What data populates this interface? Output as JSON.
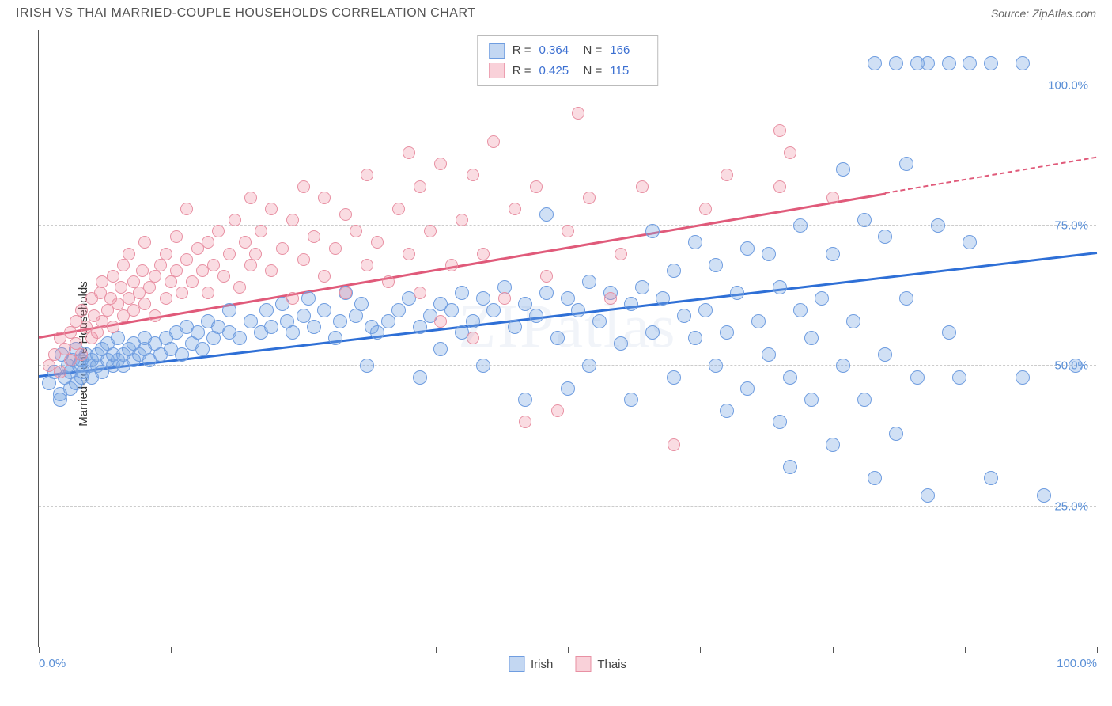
{
  "header": {
    "title": "IRISH VS THAI MARRIED-COUPLE HOUSEHOLDS CORRELATION CHART",
    "source": "Source: ZipAtlas.com"
  },
  "watermark": "ZIPatlas",
  "chart": {
    "type": "scatter",
    "y_axis_title": "Married-couple Households",
    "xlim": [
      0,
      100
    ],
    "ylim": [
      0,
      110
    ],
    "x_ticks": [
      0,
      12.5,
      25,
      37.5,
      50,
      62.5,
      75,
      87.5,
      100
    ],
    "x_tick_labels": {
      "0": "0.0%",
      "100": "100.0%"
    },
    "y_gridlines": [
      25,
      50,
      75,
      100
    ],
    "y_tick_labels": {
      "25": "25.0%",
      "50": "50.0%",
      "75": "75.0%",
      "100": "100.0%"
    },
    "background_color": "#ffffff",
    "grid_color": "#cccccc",
    "axis_color": "#555555",
    "label_color": "#5a8fd6",
    "marker_radius_irish": 9,
    "marker_radius_thai": 8,
    "series": [
      {
        "name": "Irish",
        "color_fill": "rgba(121,167,227,0.35)",
        "color_stroke": "#6f9de0",
        "trend_color": "#2e6fd6",
        "trend": {
          "x0": 0,
          "y0": 48,
          "x1": 100,
          "y1": 70,
          "dash_after_x": null
        },
        "stats": {
          "R": "0.364",
          "N": "166"
        },
        "points": [
          [
            1,
            47
          ],
          [
            1.5,
            49
          ],
          [
            2,
            45
          ],
          [
            2,
            44
          ],
          [
            2.2,
            52
          ],
          [
            2.5,
            48
          ],
          [
            2.8,
            50
          ],
          [
            3,
            46
          ],
          [
            3,
            49
          ],
          [
            3.2,
            51
          ],
          [
            3.5,
            47
          ],
          [
            3.5,
            53
          ],
          [
            3.8,
            50
          ],
          [
            4,
            48
          ],
          [
            4,
            51
          ],
          [
            4.2,
            49
          ],
          [
            4.5,
            52
          ],
          [
            4.8,
            50
          ],
          [
            5,
            48
          ],
          [
            5,
            51
          ],
          [
            5.5,
            50
          ],
          [
            5.5,
            52
          ],
          [
            6,
            49
          ],
          [
            6,
            53
          ],
          [
            6.5,
            51
          ],
          [
            6.5,
            54
          ],
          [
            7,
            50
          ],
          [
            7,
            52
          ],
          [
            7.5,
            51
          ],
          [
            7.5,
            55
          ],
          [
            8,
            52
          ],
          [
            8,
            50
          ],
          [
            8.5,
            53
          ],
          [
            9,
            51
          ],
          [
            9,
            54
          ],
          [
            9.5,
            52
          ],
          [
            10,
            53
          ],
          [
            10,
            55
          ],
          [
            10.5,
            51
          ],
          [
            11,
            54
          ],
          [
            11.5,
            52
          ],
          [
            12,
            55
          ],
          [
            12.5,
            53
          ],
          [
            13,
            56
          ],
          [
            13.5,
            52
          ],
          [
            14,
            57
          ],
          [
            14.5,
            54
          ],
          [
            15,
            56
          ],
          [
            15.5,
            53
          ],
          [
            16,
            58
          ],
          [
            16.5,
            55
          ],
          [
            17,
            57
          ],
          [
            18,
            56
          ],
          [
            18,
            60
          ],
          [
            19,
            55
          ],
          [
            20,
            58
          ],
          [
            21,
            56
          ],
          [
            21.5,
            60
          ],
          [
            22,
            57
          ],
          [
            23,
            61
          ],
          [
            23.5,
            58
          ],
          [
            24,
            56
          ],
          [
            25,
            59
          ],
          [
            25.5,
            62
          ],
          [
            26,
            57
          ],
          [
            27,
            60
          ],
          [
            28,
            55
          ],
          [
            28.5,
            58
          ],
          [
            29,
            63
          ],
          [
            30,
            59
          ],
          [
            30.5,
            61
          ],
          [
            31,
            50
          ],
          [
            31.5,
            57
          ],
          [
            32,
            56
          ],
          [
            33,
            58
          ],
          [
            34,
            60
          ],
          [
            35,
            62
          ],
          [
            36,
            57
          ],
          [
            36,
            48
          ],
          [
            37,
            59
          ],
          [
            38,
            61
          ],
          [
            38,
            53
          ],
          [
            39,
            60
          ],
          [
            40,
            63
          ],
          [
            40,
            56
          ],
          [
            41,
            58
          ],
          [
            42,
            62
          ],
          [
            42,
            50
          ],
          [
            43,
            60
          ],
          [
            44,
            64
          ],
          [
            45,
            57
          ],
          [
            46,
            61
          ],
          [
            46,
            44
          ],
          [
            47,
            59
          ],
          [
            48,
            63
          ],
          [
            48,
            77
          ],
          [
            49,
            55
          ],
          [
            50,
            62
          ],
          [
            50,
            46
          ],
          [
            51,
            60
          ],
          [
            52,
            65
          ],
          [
            52,
            50
          ],
          [
            53,
            58
          ],
          [
            54,
            63
          ],
          [
            55,
            54
          ],
          [
            56,
            61
          ],
          [
            56,
            44
          ],
          [
            57,
            64
          ],
          [
            58,
            56
          ],
          [
            58,
            74
          ],
          [
            59,
            62
          ],
          [
            60,
            48
          ],
          [
            60,
            67
          ],
          [
            61,
            59
          ],
          [
            62,
            55
          ],
          [
            62,
            72
          ],
          [
            63,
            60
          ],
          [
            64,
            50
          ],
          [
            64,
            68
          ],
          [
            65,
            56
          ],
          [
            65,
            42
          ],
          [
            66,
            63
          ],
          [
            67,
            46
          ],
          [
            67,
            71
          ],
          [
            68,
            58
          ],
          [
            69,
            52
          ],
          [
            69,
            70
          ],
          [
            70,
            40
          ],
          [
            70,
            64
          ],
          [
            71,
            48
          ],
          [
            71,
            32
          ],
          [
            72,
            60
          ],
          [
            72,
            75
          ],
          [
            73,
            44
          ],
          [
            73,
            55
          ],
          [
            74,
            62
          ],
          [
            75,
            36
          ],
          [
            75,
            70
          ],
          [
            76,
            50
          ],
          [
            76,
            85
          ],
          [
            77,
            58
          ],
          [
            78,
            44
          ],
          [
            78,
            76
          ],
          [
            79,
            30
          ],
          [
            79,
            104
          ],
          [
            80,
            52
          ],
          [
            80,
            73
          ],
          [
            81,
            38
          ],
          [
            81,
            104
          ],
          [
            82,
            62
          ],
          [
            82,
            86
          ],
          [
            83,
            48
          ],
          [
            83,
            104
          ],
          [
            84,
            27
          ],
          [
            84,
            104
          ],
          [
            85,
            75
          ],
          [
            86,
            104
          ],
          [
            86,
            56
          ],
          [
            87,
            48
          ],
          [
            88,
            104
          ],
          [
            88,
            72
          ],
          [
            90,
            104
          ],
          [
            90,
            30
          ],
          [
            93,
            104
          ],
          [
            93,
            48
          ],
          [
            95,
            27
          ],
          [
            98,
            50
          ]
        ]
      },
      {
        "name": "Thais",
        "color_fill": "rgba(240,140,160,0.30)",
        "color_stroke": "#e890a3",
        "trend_color": "#e05a7a",
        "trend": {
          "x0": 0,
          "y0": 55,
          "x1": 100,
          "y1": 87,
          "dash_after_x": 80
        },
        "stats": {
          "R": "0.425",
          "N": "115"
        },
        "points": [
          [
            1,
            50
          ],
          [
            1.5,
            52
          ],
          [
            2,
            55
          ],
          [
            2,
            49
          ],
          [
            2.5,
            53
          ],
          [
            3,
            51
          ],
          [
            3,
            56
          ],
          [
            3.5,
            54
          ],
          [
            3.5,
            58
          ],
          [
            4,
            52
          ],
          [
            4,
            60
          ],
          [
            4.5,
            57
          ],
          [
            5,
            55
          ],
          [
            5,
            62
          ],
          [
            5.2,
            59
          ],
          [
            5.5,
            56
          ],
          [
            5.8,
            63
          ],
          [
            6,
            58
          ],
          [
            6,
            65
          ],
          [
            6.5,
            60
          ],
          [
            6.8,
            62
          ],
          [
            7,
            57
          ],
          [
            7,
            66
          ],
          [
            7.5,
            61
          ],
          [
            7.8,
            64
          ],
          [
            8,
            59
          ],
          [
            8,
            68
          ],
          [
            8.5,
            62
          ],
          [
            8.5,
            70
          ],
          [
            9,
            60
          ],
          [
            9,
            65
          ],
          [
            9.5,
            63
          ],
          [
            9.8,
            67
          ],
          [
            10,
            61
          ],
          [
            10,
            72
          ],
          [
            10.5,
            64
          ],
          [
            11,
            66
          ],
          [
            11,
            59
          ],
          [
            11.5,
            68
          ],
          [
            12,
            62
          ],
          [
            12,
            70
          ],
          [
            12.5,
            65
          ],
          [
            13,
            67
          ],
          [
            13,
            73
          ],
          [
            13.5,
            63
          ],
          [
            14,
            69
          ],
          [
            14,
            78
          ],
          [
            14.5,
            65
          ],
          [
            15,
            71
          ],
          [
            15.5,
            67
          ],
          [
            16,
            72
          ],
          [
            16,
            63
          ],
          [
            16.5,
            68
          ],
          [
            17,
            74
          ],
          [
            17.5,
            66
          ],
          [
            18,
            70
          ],
          [
            18.5,
            76
          ],
          [
            19,
            64
          ],
          [
            19.5,
            72
          ],
          [
            20,
            68
          ],
          [
            20,
            80
          ],
          [
            20.5,
            70
          ],
          [
            21,
            74
          ],
          [
            22,
            67
          ],
          [
            22,
            78
          ],
          [
            23,
            71
          ],
          [
            24,
            62
          ],
          [
            24,
            76
          ],
          [
            25,
            69
          ],
          [
            25,
            82
          ],
          [
            26,
            73
          ],
          [
            27,
            66
          ],
          [
            27,
            80
          ],
          [
            28,
            71
          ],
          [
            29,
            63
          ],
          [
            29,
            77
          ],
          [
            30,
            74
          ],
          [
            31,
            68
          ],
          [
            31,
            84
          ],
          [
            32,
            72
          ],
          [
            33,
            65
          ],
          [
            34,
            78
          ],
          [
            35,
            88
          ],
          [
            35,
            70
          ],
          [
            36,
            63
          ],
          [
            36,
            82
          ],
          [
            37,
            74
          ],
          [
            38,
            58
          ],
          [
            38,
            86
          ],
          [
            39,
            68
          ],
          [
            40,
            76
          ],
          [
            41,
            55
          ],
          [
            41,
            84
          ],
          [
            42,
            70
          ],
          [
            43,
            90
          ],
          [
            44,
            62
          ],
          [
            45,
            78
          ],
          [
            46,
            40
          ],
          [
            47,
            82
          ],
          [
            48,
            66
          ],
          [
            49,
            42
          ],
          [
            50,
            74
          ],
          [
            51,
            95
          ],
          [
            52,
            80
          ],
          [
            54,
            62
          ],
          [
            55,
            70
          ],
          [
            57,
            82
          ],
          [
            60,
            36
          ],
          [
            63,
            78
          ],
          [
            65,
            84
          ],
          [
            70,
            92
          ],
          [
            70,
            82
          ],
          [
            71,
            88
          ],
          [
            75,
            80
          ]
        ]
      }
    ],
    "legend_bottom": [
      "Irish",
      "Thais"
    ]
  }
}
